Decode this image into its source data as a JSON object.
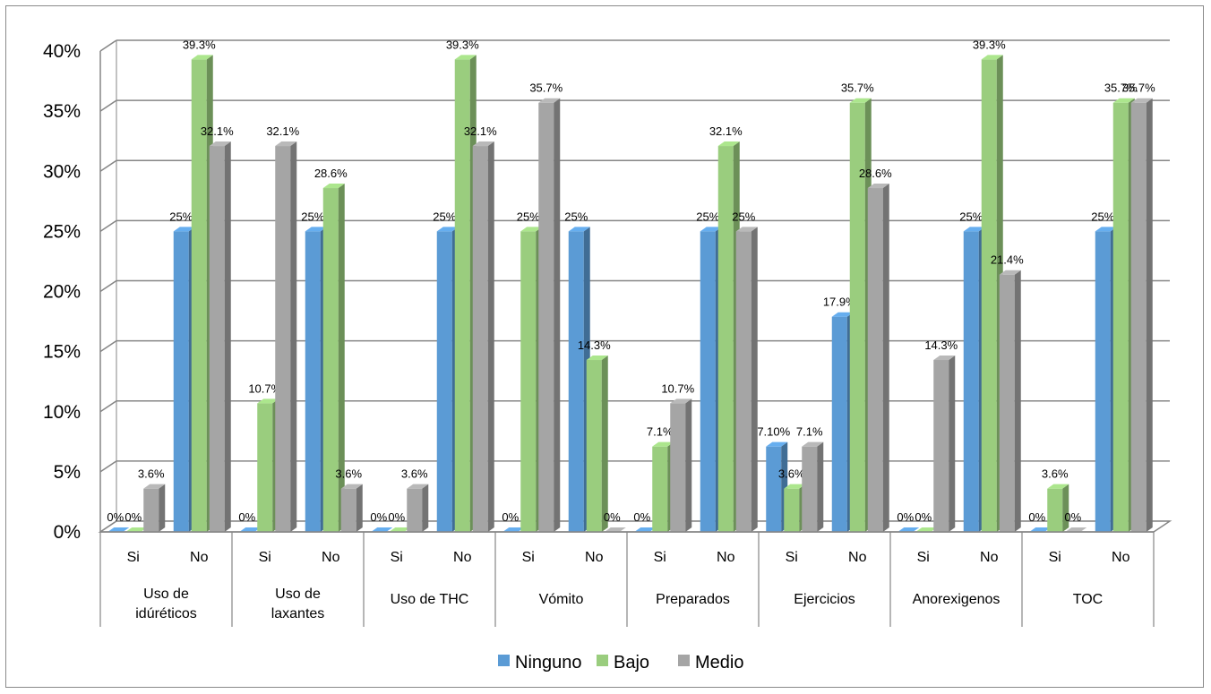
{
  "chart_data": {
    "type": "bar",
    "style": "3d-clustered-column",
    "groups": [
      {
        "label": "Uso de\nidúréticos",
        "sublabels": [
          "Si",
          "No"
        ]
      },
      {
        "label": "Uso de\nlaxantes",
        "sublabels": [
          "Si",
          "No"
        ]
      },
      {
        "label": "Uso de THC",
        "sublabels": [
          "Si",
          "No"
        ]
      },
      {
        "label": "Vómito",
        "sublabels": [
          "Si",
          "No"
        ]
      },
      {
        "label": "Preparados",
        "sublabels": [
          "Si",
          "No"
        ]
      },
      {
        "label": "Ejercicios",
        "sublabels": [
          "Si",
          "No"
        ]
      },
      {
        "label": "Anorexigenos",
        "sublabels": [
          "Si",
          "No"
        ]
      },
      {
        "label": "TOC",
        "sublabels": [
          "Si",
          "No"
        ]
      }
    ],
    "categories": [
      "Uso de idúréticos Si",
      "Uso de idúréticos No",
      "Uso de laxantes Si",
      "Uso de laxantes No",
      "Uso de THC Si",
      "Uso de THC No",
      "Vómito Si",
      "Vómito No",
      "Preparados Si",
      "Preparados No",
      "Ejercicios Si",
      "Ejercicios No",
      "Anorexigenos Si",
      "Anorexigenos No",
      "TOC Si",
      "TOC No"
    ],
    "series": [
      {
        "name": "Ninguno",
        "color": "#5B9BD5",
        "values": [
          0,
          25,
          0,
          25,
          0,
          25,
          0,
          25,
          0,
          25,
          7.1,
          17.9,
          0,
          25,
          0,
          25
        ],
        "labels": [
          "0%",
          "25%",
          "0%",
          "25%",
          "0%",
          "25%",
          "0%",
          "25%",
          "0%",
          "25%",
          "7.10%",
          "17.9%",
          "0%",
          "25%",
          "0%",
          "25%"
        ]
      },
      {
        "name": "Bajo",
        "color": "#9ACD7E",
        "values": [
          0,
          39.3,
          10.7,
          28.6,
          0,
          39.3,
          25,
          14.3,
          7.1,
          32.1,
          3.6,
          35.7,
          0,
          39.3,
          3.6,
          35.7
        ],
        "labels": [
          "0%",
          "39.3%",
          "10.7%",
          "28.6%",
          "0%",
          "39.3%",
          "25%",
          "14.3%",
          "7.1%",
          "32.1%",
          "3.6%",
          "35.7%",
          "0%",
          "39.3%",
          "3.6%",
          "35.7%"
        ]
      },
      {
        "name": "Medio",
        "color": "#A5A5A5",
        "values": [
          3.6,
          32.1,
          32.1,
          3.6,
          3.6,
          32.1,
          35.7,
          0,
          10.7,
          25,
          7.1,
          28.6,
          14.3,
          21.4,
          0,
          35.7
        ],
        "labels": [
          "3.6%",
          "32.1%",
          "32.1%",
          "3.6%",
          "3.6%",
          "32.1%",
          "35.7%",
          "0%",
          "10.7%",
          "25%",
          "7.1%",
          "28.6%",
          "14.3%",
          "21.4%",
          "0%",
          "35.7%"
        ]
      }
    ],
    "yticks": [
      "0%",
      "5%",
      "10%",
      "15%",
      "20%",
      "25%",
      "30%",
      "35%",
      "40%"
    ],
    "ylim": [
      0,
      40
    ],
    "grid": true,
    "legend": "bottom"
  }
}
